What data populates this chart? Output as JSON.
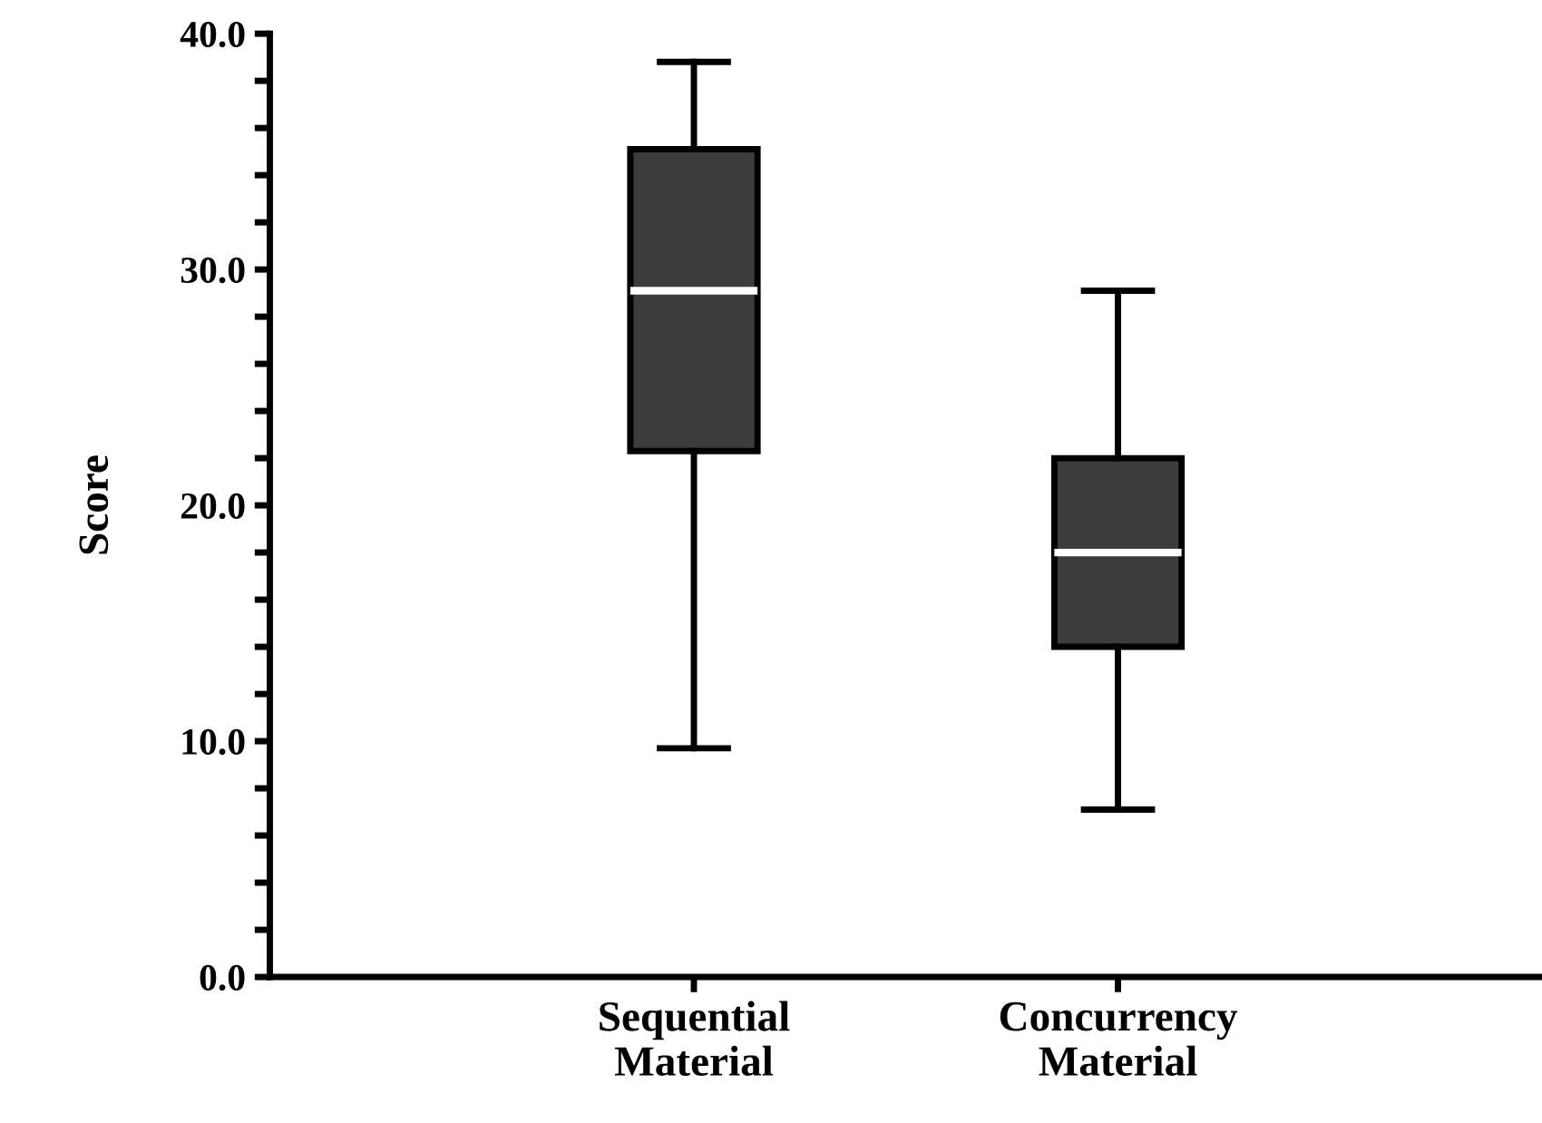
{
  "chart_data": {
    "type": "box",
    "ylabel": "Score",
    "categories": [
      "Sequential\nMaterial",
      "Concurrency\nMaterial"
    ],
    "boxes": [
      {
        "low": 9.7,
        "q1": 22.3,
        "median": 29.1,
        "q3": 35.1,
        "high": 38.8
      },
      {
        "low": 7.1,
        "q1": 14.0,
        "median": 18.0,
        "q3": 22.0,
        "high": 29.1
      }
    ],
    "color": "#3c3c3c",
    "ylim": [
      0,
      40
    ],
    "yticks": [
      {
        "value": 0,
        "label": "0.0"
      },
      {
        "value": 2,
        "label": null
      },
      {
        "value": 4,
        "label": null
      },
      {
        "value": 6,
        "label": null
      },
      {
        "value": 8,
        "label": null
      },
      {
        "value": 10,
        "label": "10.0"
      },
      {
        "value": 12,
        "label": null
      },
      {
        "value": 14,
        "label": null
      },
      {
        "value": 16,
        "label": null
      },
      {
        "value": 18,
        "label": null
      },
      {
        "value": 20,
        "label": "20.0"
      },
      {
        "value": 22,
        "label": null
      },
      {
        "value": 24,
        "label": null
      },
      {
        "value": 26,
        "label": null
      },
      {
        "value": 28,
        "label": null
      },
      {
        "value": 30,
        "label": "30.0"
      },
      {
        "value": 32,
        "label": null
      },
      {
        "value": 34,
        "label": null
      },
      {
        "value": 36,
        "label": null
      },
      {
        "value": 38,
        "label": null
      },
      {
        "value": 40,
        "label": "40.0"
      }
    ],
    "grid": false
  }
}
